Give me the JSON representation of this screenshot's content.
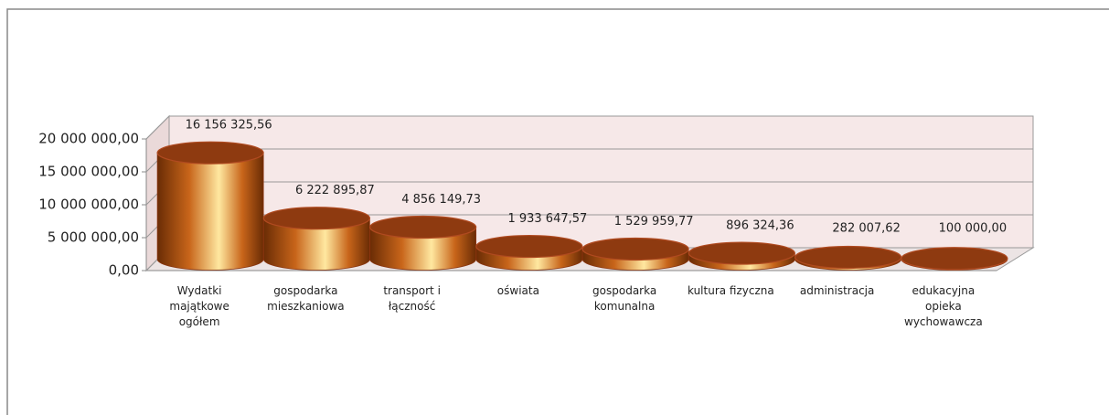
{
  "chart_data": {
    "type": "bar",
    "categories": [
      "Wydatki\nmajątkowe\nogółem",
      "gospodarka\nmieszkaniowa",
      "transport i\nłączność",
      "oświata",
      "gospodarka\nkomunalna",
      "kultura fizyczna",
      "administracja",
      "edukacyjna\nopieka\nwychowawcza"
    ],
    "values": [
      16156325.56,
      6222895.87,
      4856149.73,
      1933647.57,
      1529959.77,
      896324.36,
      282007.62,
      100000.0
    ],
    "value_labels": [
      "16 156 325,56",
      "6 222 895,87",
      "4 856 149,73",
      "1 933 647,57",
      "1 529 959,77",
      "896 324,36",
      "282 007,62",
      "100 000,00"
    ],
    "color": "#c8651a",
    "ylim": [
      0,
      20000000
    ],
    "yticks": [
      {
        "value": 0,
        "label": "0,00"
      },
      {
        "value": 5000000,
        "label": "5 000 000,00"
      },
      {
        "value": 10000000,
        "label": "10 000 000,00"
      },
      {
        "value": 15000000,
        "label": "15 000 000,00"
      },
      {
        "value": 20000000,
        "label": "20 000 000,00"
      }
    ],
    "grid": true
  }
}
